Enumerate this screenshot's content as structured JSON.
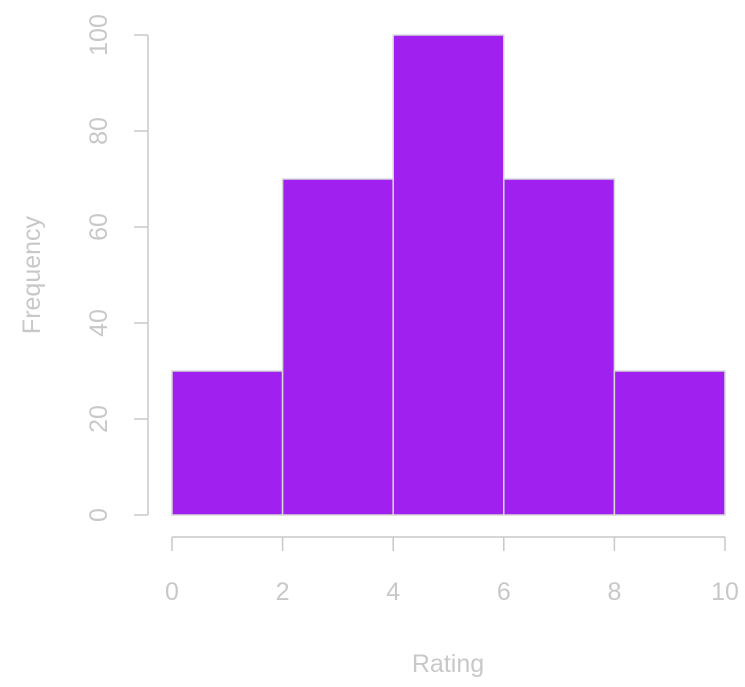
{
  "chart_data": {
    "type": "bar",
    "subtype": "histogram",
    "bins": [
      {
        "start": 0,
        "end": 2,
        "value": 30
      },
      {
        "start": 2,
        "end": 4,
        "value": 70
      },
      {
        "start": 4,
        "end": 6,
        "value": 100
      },
      {
        "start": 6,
        "end": 8,
        "value": 70
      },
      {
        "start": 8,
        "end": 10,
        "value": 30
      }
    ],
    "x_ticks": [
      "0",
      "2",
      "4",
      "6",
      "8",
      "10"
    ],
    "y_ticks": [
      "0",
      "20",
      "40",
      "60",
      "80",
      "100"
    ],
    "xlabel": "Rating",
    "ylabel": "Frequency",
    "xlim": [
      0,
      10
    ],
    "ylim": [
      0,
      100
    ],
    "grid": false,
    "colors": {
      "bar_fill": "#A020F0",
      "bar_stroke": "#D8D8D8",
      "axis": "#C8C8C8",
      "text": "#C8C8C8"
    }
  }
}
